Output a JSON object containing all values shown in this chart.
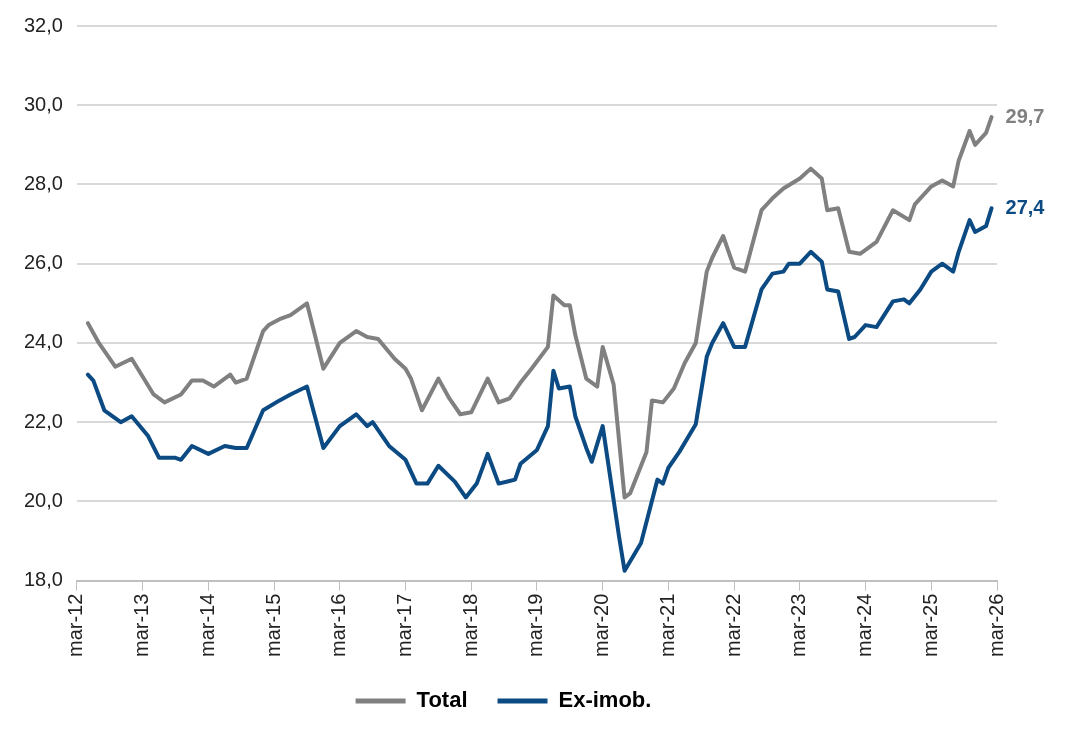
{
  "chart_data": {
    "type": "line",
    "xlim": [
      "2012-03",
      "2026-03"
    ],
    "xticks": [
      {
        "value": "2012-03",
        "label": "mar-12"
      },
      {
        "value": "2013-03",
        "label": "mar-13"
      },
      {
        "value": "2014-03",
        "label": "mar-14"
      },
      {
        "value": "2015-03",
        "label": "mar-15"
      },
      {
        "value": "2016-03",
        "label": "mar-16"
      },
      {
        "value": "2017-03",
        "label": "mar-17"
      },
      {
        "value": "2018-03",
        "label": "mar-18"
      },
      {
        "value": "2019-03",
        "label": "mar-19"
      },
      {
        "value": "2020-03",
        "label": "mar-20"
      },
      {
        "value": "2021-03",
        "label": "mar-21"
      },
      {
        "value": "2022-03",
        "label": "mar-22"
      },
      {
        "value": "2023-03",
        "label": "mar-23"
      },
      {
        "value": "2024-03",
        "label": "mar-24"
      },
      {
        "value": "2025-03",
        "label": "mar-25"
      },
      {
        "value": "2026-03",
        "label": "mar-26"
      }
    ],
    "ylim": [
      18,
      32
    ],
    "yticks": [
      {
        "value": 18,
        "label": "18,0"
      },
      {
        "value": 20,
        "label": "20,0"
      },
      {
        "value": 22,
        "label": "22,0"
      },
      {
        "value": 24,
        "label": "24,0"
      },
      {
        "value": 26,
        "label": "26,0"
      },
      {
        "value": 28,
        "label": "28,0"
      },
      {
        "value": 30,
        "label": "30,0"
      },
      {
        "value": 32,
        "label": "32,0"
      }
    ],
    "grid": "y",
    "legend": "bottom",
    "marker": "none",
    "line_style": "solid",
    "annotations": [
      {
        "text": "29,7",
        "x": "2026-02",
        "y": 29.7
      },
      {
        "text": "27,4",
        "x": "2026-02",
        "y": 27.4
      }
    ],
    "series": [
      {
        "name": "Total",
        "color": "#808080",
        "x": [
          "2012-05",
          "2012-07",
          "2012-10",
          "2013-01",
          "2013-05",
          "2013-07",
          "2013-10",
          "2013-12",
          "2014-02",
          "2014-04",
          "2014-07",
          "2014-08",
          "2014-10",
          "2015-01",
          "2015-02",
          "2015-04",
          "2015-06",
          "2015-09",
          "2015-12",
          "2016-03",
          "2016-06",
          "2016-08",
          "2016-10",
          "2017-01",
          "2017-03",
          "2017-04",
          "2017-06",
          "2017-09",
          "2017-11",
          "2018-01",
          "2018-03",
          "2018-06",
          "2018-08",
          "2018-10",
          "2018-12",
          "2019-02",
          "2019-05",
          "2019-06",
          "2019-08",
          "2019-09",
          "2019-10",
          "2019-12",
          "2020-02",
          "2020-03",
          "2020-05",
          "2020-07",
          "2020-08",
          "2020-11",
          "2020-12",
          "2021-02",
          "2021-04",
          "2021-06",
          "2021-08",
          "2021-10",
          "2021-11",
          "2022-01",
          "2022-03",
          "2022-05",
          "2022-08",
          "2022-10",
          "2022-12",
          "2023-03",
          "2023-05",
          "2023-07",
          "2023-08",
          "2023-10",
          "2023-12",
          "2024-02",
          "2024-05",
          "2024-08",
          "2024-11",
          "2024-12",
          "2025-03",
          "2025-05",
          "2025-07",
          "2025-08",
          "2025-10",
          "2025-11",
          "2026-01",
          "2026-02"
        ],
        "values": [
          24.5,
          24.0,
          23.4,
          23.6,
          22.7,
          22.5,
          22.7,
          23.05,
          23.05,
          22.9,
          23.2,
          23.0,
          23.1,
          24.3,
          24.45,
          24.6,
          24.7,
          25.0,
          23.35,
          24.0,
          24.3,
          24.15,
          24.1,
          23.6,
          23.35,
          23.1,
          22.3,
          23.1,
          22.6,
          22.2,
          22.25,
          23.1,
          22.5,
          22.6,
          23.0,
          23.35,
          23.9,
          25.2,
          24.95,
          24.95,
          24.2,
          23.1,
          22.9,
          23.9,
          22.95,
          20.1,
          20.2,
          21.25,
          22.55,
          22.5,
          22.85,
          23.5,
          24.0,
          25.8,
          26.15,
          26.7,
          25.9,
          25.8,
          27.35,
          27.65,
          27.9,
          28.15,
          28.4,
          28.15,
          27.35,
          27.4,
          26.3,
          26.25,
          26.55,
          27.35,
          27.1,
          27.5,
          27.95,
          28.1,
          27.95,
          28.6,
          29.35,
          29.0,
          29.3,
          29.7
        ]
      },
      {
        "name": "Ex-imob.",
        "color": "#0b4a82",
        "x": [
          "2012-05",
          "2012-06",
          "2012-08",
          "2012-11",
          "2013-01",
          "2013-04",
          "2013-06",
          "2013-09",
          "2013-10",
          "2013-12",
          "2014-03",
          "2014-06",
          "2014-08",
          "2014-10",
          "2015-01",
          "2015-04",
          "2015-06",
          "2015-09",
          "2015-12",
          "2016-03",
          "2016-06",
          "2016-08",
          "2016-09",
          "2016-12",
          "2017-03",
          "2017-05",
          "2017-07",
          "2017-09",
          "2017-12",
          "2018-02",
          "2018-04",
          "2018-06",
          "2018-08",
          "2018-11",
          "2018-12",
          "2019-03",
          "2019-05",
          "2019-06",
          "2019-07",
          "2019-09",
          "2019-10",
          "2019-12",
          "2020-01",
          "2020-03",
          "2020-06",
          "2020-07",
          "2020-10",
          "2021-01",
          "2021-02",
          "2021-03",
          "2021-05",
          "2021-08",
          "2021-10",
          "2021-11",
          "2022-01",
          "2022-03",
          "2022-05",
          "2022-08",
          "2022-10",
          "2022-12",
          "2023-01",
          "2023-03",
          "2023-05",
          "2023-07",
          "2023-08",
          "2023-10",
          "2023-12",
          "2024-01",
          "2024-03",
          "2024-05",
          "2024-08",
          "2024-10",
          "2024-11",
          "2025-01",
          "2025-03",
          "2025-05",
          "2025-07",
          "2025-08",
          "2025-10",
          "2025-11",
          "2026-01",
          "2026-02"
        ],
        "values": [
          23.2,
          23.05,
          22.3,
          22.0,
          22.15,
          21.65,
          21.1,
          21.1,
          21.05,
          21.4,
          21.2,
          21.4,
          21.35,
          21.35,
          22.3,
          22.55,
          22.7,
          22.9,
          21.35,
          21.9,
          22.2,
          21.9,
          22.0,
          21.4,
          21.05,
          20.45,
          20.45,
          20.9,
          20.5,
          20.1,
          20.45,
          21.2,
          20.45,
          20.55,
          20.95,
          21.3,
          21.9,
          23.3,
          22.85,
          22.9,
          22.15,
          21.35,
          21.0,
          21.9,
          19.1,
          18.25,
          18.95,
          20.55,
          20.45,
          20.85,
          21.25,
          21.95,
          23.65,
          24.0,
          24.5,
          23.9,
          23.9,
          25.35,
          25.75,
          25.8,
          26.0,
          26.0,
          26.3,
          26.05,
          25.35,
          25.3,
          24.1,
          24.15,
          24.45,
          24.4,
          25.05,
          25.1,
          25.0,
          25.35,
          25.8,
          26.0,
          25.8,
          26.3,
          27.1,
          26.8,
          26.95,
          27.4
        ]
      }
    ]
  }
}
